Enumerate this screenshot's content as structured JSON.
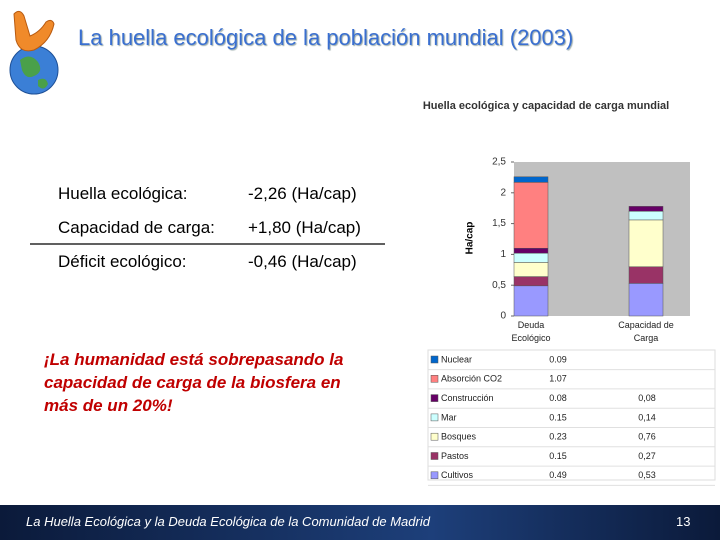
{
  "slide": {
    "title": "La huella ecológica de la población mundial (2003)",
    "rows": [
      [
        "Huella ecológica:",
        "-2,26 (Ha/cap)"
      ],
      [
        "Capacidad de carga:",
        "+1,80 (Ha/cap)"
      ],
      [
        "Déficit ecológico:",
        "-0,46 (Ha/cap)"
      ]
    ],
    "note": "¡La humanidad está sobrepasando la capacidad de carga de la biosfera en más de un 20%!",
    "footer": "La Huella Ecológica y la Deuda Ecológica de la Comunidad de Madrid",
    "page": "13"
  },
  "chart_data": {
    "type": "stacked_bar",
    "title": "Huella ecológica y capacidad de carga mundial",
    "y_label": "Ha/cap",
    "categories": [
      "Deuda Ecológico",
      "Capacidad de Carga"
    ],
    "ylim": [
      0,
      2.5
    ],
    "yticks": [
      0,
      {
        "value": 0.5,
        "label": "0,5"
      },
      1,
      {
        "value": 1.5,
        "label": "1,5"
      },
      2,
      {
        "value": 2.5,
        "label": "2,5"
      }
    ],
    "series": [
      {
        "name": "Cultivos",
        "color": "#9999ff",
        "values": [
          0.49,
          0.53
        ],
        "value_labels": [
          "0.49",
          "0,53"
        ]
      },
      {
        "name": "Pastos",
        "color": "#993366",
        "values": [
          0.15,
          0.27
        ],
        "value_labels": [
          "0.15",
          "0,27"
        ]
      },
      {
        "name": "Bosques",
        "color": "#ffffcc",
        "values": [
          0.23,
          0.76
        ],
        "value_labels": [
          "0.23",
          "0,76"
        ]
      },
      {
        "name": "Mar",
        "color": "#ccffff",
        "values": [
          0.15,
          0.14
        ],
        "value_labels": [
          "0.15",
          "0,14"
        ]
      },
      {
        "name": "Construcción",
        "color": "#660066",
        "values": [
          0.08,
          0.08
        ],
        "value_labels": [
          "0.08",
          "0,08"
        ]
      },
      {
        "name": "Absorción CO2",
        "color": "#ff8080",
        "values": [
          1.07,
          null
        ],
        "value_labels": [
          "1.07",
          null
        ]
      },
      {
        "name": "Nuclear",
        "color": "#0066cc",
        "values": [
          0.09,
          null
        ],
        "value_labels": [
          "0.09",
          null
        ]
      }
    ]
  }
}
